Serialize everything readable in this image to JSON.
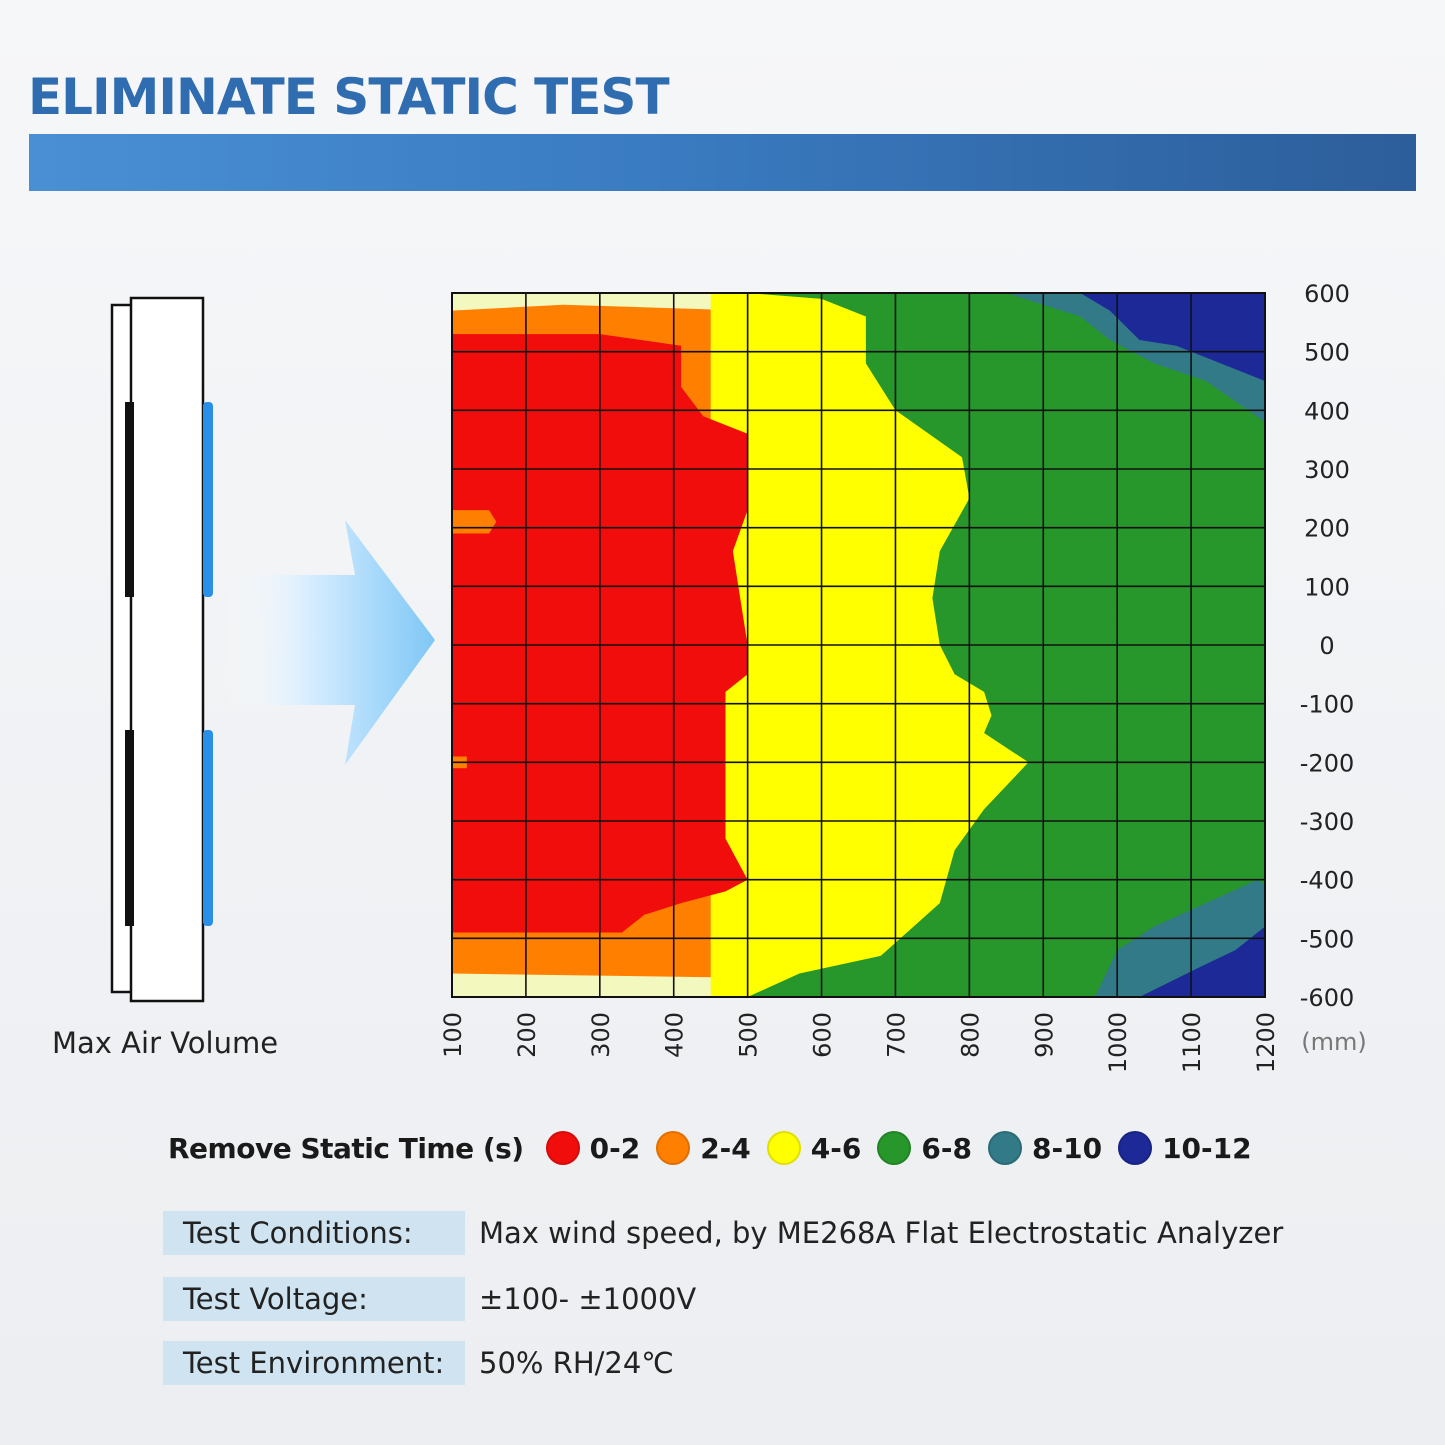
{
  "title": "ELIMINATE STATIC TEST",
  "device_label": "Max Air Volume",
  "chart_data": {
    "type": "heatmap",
    "x_ticks": [
      "100",
      "200",
      "300",
      "400",
      "500",
      "600",
      "700",
      "800",
      "900",
      "1000",
      "1100",
      "1200"
    ],
    "y_ticks": [
      "600",
      "500",
      "400",
      "300",
      "200",
      "100",
      "0",
      "-100",
      "-200",
      "-300",
      "-400",
      "-500",
      "-600"
    ],
    "x_unit": "(mm)",
    "xlim": [
      100,
      1200
    ],
    "ylim": [
      -600,
      600
    ],
    "grid": true,
    "legend_title": "Remove Static Time (s)",
    "legend_position": "bottom",
    "levels": [
      {
        "label": "0-2",
        "range": [
          0,
          2
        ],
        "color": "#f20d0d"
      },
      {
        "label": "2-4",
        "range": [
          2,
          4
        ],
        "color": "#ff7f00"
      },
      {
        "label": "4-6",
        "range": [
          4,
          6
        ],
        "color": "#ffff00"
      },
      {
        "label": "6-8",
        "range": [
          6,
          8
        ],
        "color": "#27962b"
      },
      {
        "label": "8-10",
        "range": [
          8,
          10
        ],
        "color": "#327a87"
      },
      {
        "label": "10-12",
        "range": [
          10,
          12
        ],
        "color": "#1c2996"
      }
    ],
    "corner_color": "#f3f8bf",
    "regions": [
      {
        "level": "2-4",
        "points": [
          [
            100,
            570
          ],
          [
            250,
            580
          ],
          [
            500,
            570
          ],
          [
            700,
            560
          ],
          [
            850,
            560
          ],
          [
            1200,
            570
          ],
          [
            1200,
            -580
          ],
          [
            100,
            -560
          ]
        ]
      },
      {
        "level": "4-6",
        "points": [
          [
            450,
            600
          ],
          [
            1200,
            600
          ],
          [
            1200,
            -600
          ],
          [
            450,
            -600
          ]
        ]
      },
      {
        "level": "6-8",
        "points": [
          [
            1200,
            600
          ],
          [
            500,
            600
          ],
          [
            600,
            590
          ],
          [
            660,
            560
          ],
          [
            660,
            480
          ],
          [
            700,
            400
          ],
          [
            790,
            320
          ],
          [
            800,
            250
          ],
          [
            760,
            160
          ],
          [
            750,
            80
          ],
          [
            760,
            0
          ],
          [
            780,
            -50
          ],
          [
            820,
            -80
          ],
          [
            830,
            -120
          ],
          [
            820,
            -150
          ],
          [
            880,
            -200
          ],
          [
            820,
            -280
          ],
          [
            780,
            -350
          ],
          [
            760,
            -440
          ],
          [
            680,
            -530
          ],
          [
            570,
            -560
          ],
          [
            500,
            -600
          ],
          [
            1200,
            -600
          ]
        ]
      },
      {
        "level": "6-8",
        "points": [
          [
            1200,
            600
          ],
          [
            950,
            600
          ],
          [
            880,
            560
          ],
          [
            850,
            520
          ],
          [
            810,
            490
          ],
          [
            800,
            380
          ],
          [
            850,
            320
          ],
          [
            910,
            230
          ],
          [
            980,
            140
          ],
          [
            1000,
            50
          ],
          [
            940,
            -30
          ],
          [
            980,
            -150
          ],
          [
            1020,
            -200
          ],
          [
            980,
            -340
          ],
          [
            960,
            -480
          ],
          [
            860,
            -560
          ],
          [
            760,
            -600
          ],
          [
            1200,
            -600
          ]
        ]
      },
      {
        "level": "8-10",
        "points": [
          [
            1200,
            600
          ],
          [
            850,
            600
          ],
          [
            950,
            560
          ],
          [
            990,
            520
          ],
          [
            1050,
            480
          ],
          [
            1120,
            450
          ],
          [
            1200,
            380
          ],
          [
            1200,
            600
          ]
        ]
      },
      {
        "level": "8-10",
        "points": [
          [
            1200,
            -600
          ],
          [
            970,
            -600
          ],
          [
            1000,
            -520
          ],
          [
            1050,
            -480
          ],
          [
            1120,
            -440
          ],
          [
            1190,
            -400
          ],
          [
            1200,
            -410
          ]
        ]
      },
      {
        "level": "10-12",
        "points": [
          [
            1200,
            600
          ],
          [
            950,
            600
          ],
          [
            990,
            570
          ],
          [
            1030,
            520
          ],
          [
            1080,
            510
          ],
          [
            1120,
            490
          ],
          [
            1200,
            450
          ],
          [
            1200,
            600
          ]
        ]
      },
      {
        "level": "10-12",
        "points": [
          [
            1200,
            -600
          ],
          [
            1030,
            -600
          ],
          [
            1110,
            -550
          ],
          [
            1160,
            -520
          ],
          [
            1200,
            -480
          ]
        ]
      },
      {
        "level": "0-2",
        "points": [
          [
            100,
            530
          ],
          [
            300,
            530
          ],
          [
            410,
            510
          ],
          [
            410,
            440
          ],
          [
            440,
            390
          ],
          [
            500,
            360
          ],
          [
            500,
            230
          ],
          [
            480,
            160
          ],
          [
            490,
            80
          ],
          [
            500,
            0
          ],
          [
            500,
            -50
          ],
          [
            470,
            -80
          ],
          [
            470,
            -200
          ],
          [
            470,
            -330
          ],
          [
            500,
            -400
          ],
          [
            470,
            -420
          ],
          [
            410,
            -440
          ],
          [
            360,
            -460
          ],
          [
            330,
            -490
          ],
          [
            100,
            -490
          ]
        ]
      },
      {
        "level": "2-4",
        "points": [
          [
            100,
            230
          ],
          [
            150,
            230
          ],
          [
            160,
            210
          ],
          [
            150,
            190
          ],
          [
            100,
            190
          ]
        ]
      },
      {
        "level": "2-4",
        "points": [
          [
            100,
            -190
          ],
          [
            120,
            -190
          ],
          [
            120,
            -210
          ],
          [
            100,
            -210
          ]
        ]
      }
    ]
  },
  "test_info": [
    {
      "label": "Test Conditions:",
      "value": "Max wind speed, by ME268A Flat Electrostatic Analyzer"
    },
    {
      "label": "Test Voltage:",
      "value": "±100- ±1000V"
    },
    {
      "label": "Test Environment:",
      "value": "50% RH/24℃"
    }
  ]
}
